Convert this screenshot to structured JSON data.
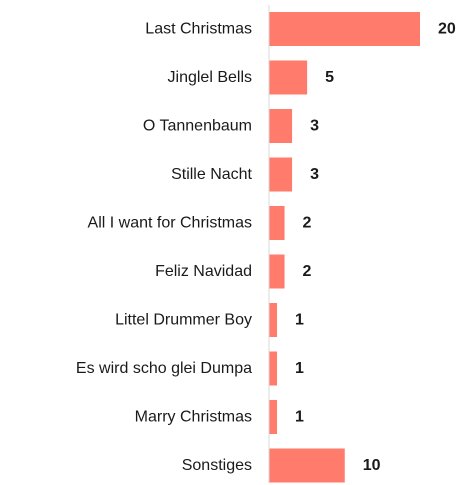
{
  "chart_data": {
    "type": "bar",
    "orientation": "horizontal",
    "categories": [
      "Last Christmas",
      "Jinglel Bells",
      "O Tannenbaum",
      "Stille Nacht",
      "All I want for Christmas",
      "Feliz Navidad",
      "Littel Drummer Boy",
      "Es wird scho glei Dumpa",
      "Marry Christmas",
      "Sonstiges"
    ],
    "values": [
      20,
      5,
      3,
      3,
      2,
      2,
      1,
      1,
      1,
      10
    ],
    "data_labels": [
      "20",
      "5",
      "3",
      "3",
      "2",
      "2",
      "1",
      "1",
      "1",
      "10"
    ],
    "title": "",
    "xlabel": "",
    "ylabel": "",
    "xlim": [
      0,
      20
    ],
    "grid": false,
    "legend": "none",
    "bar_color": "#ff7b6b",
    "axis_color": "#d9d9d9"
  }
}
